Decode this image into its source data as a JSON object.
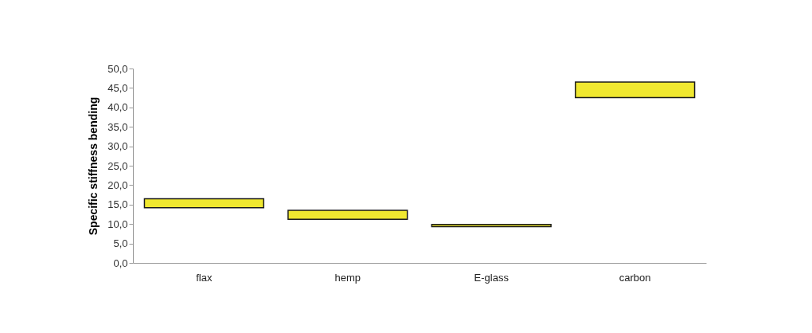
{
  "chart_data": {
    "type": "bar",
    "ylabel": "Specific stiffness bending",
    "categories": [
      "flax",
      "hemp",
      "E-glass",
      "carbon"
    ],
    "base": [
      14.2,
      11.2,
      9.3,
      42.5
    ],
    "values": [
      2.3,
      2.3,
      0.6,
      4.0
    ],
    "color": "#f0e830",
    "ylim": [
      0,
      50
    ],
    "yticks": [
      {
        "value": 0,
        "label": "0,0"
      },
      {
        "value": 5,
        "label": "5,0"
      },
      {
        "value": 10,
        "label": "10,0"
      },
      {
        "value": 15,
        "label": "15,0"
      },
      {
        "value": 20,
        "label": "20,0"
      },
      {
        "value": 25,
        "label": "25,0"
      },
      {
        "value": 30,
        "label": "30,0"
      },
      {
        "value": 35,
        "label": "35,0"
      },
      {
        "value": 40,
        "label": "40,0"
      },
      {
        "value": 45,
        "label": "45,0"
      },
      {
        "value": 50,
        "label": "50,0"
      }
    ],
    "grid": false
  }
}
